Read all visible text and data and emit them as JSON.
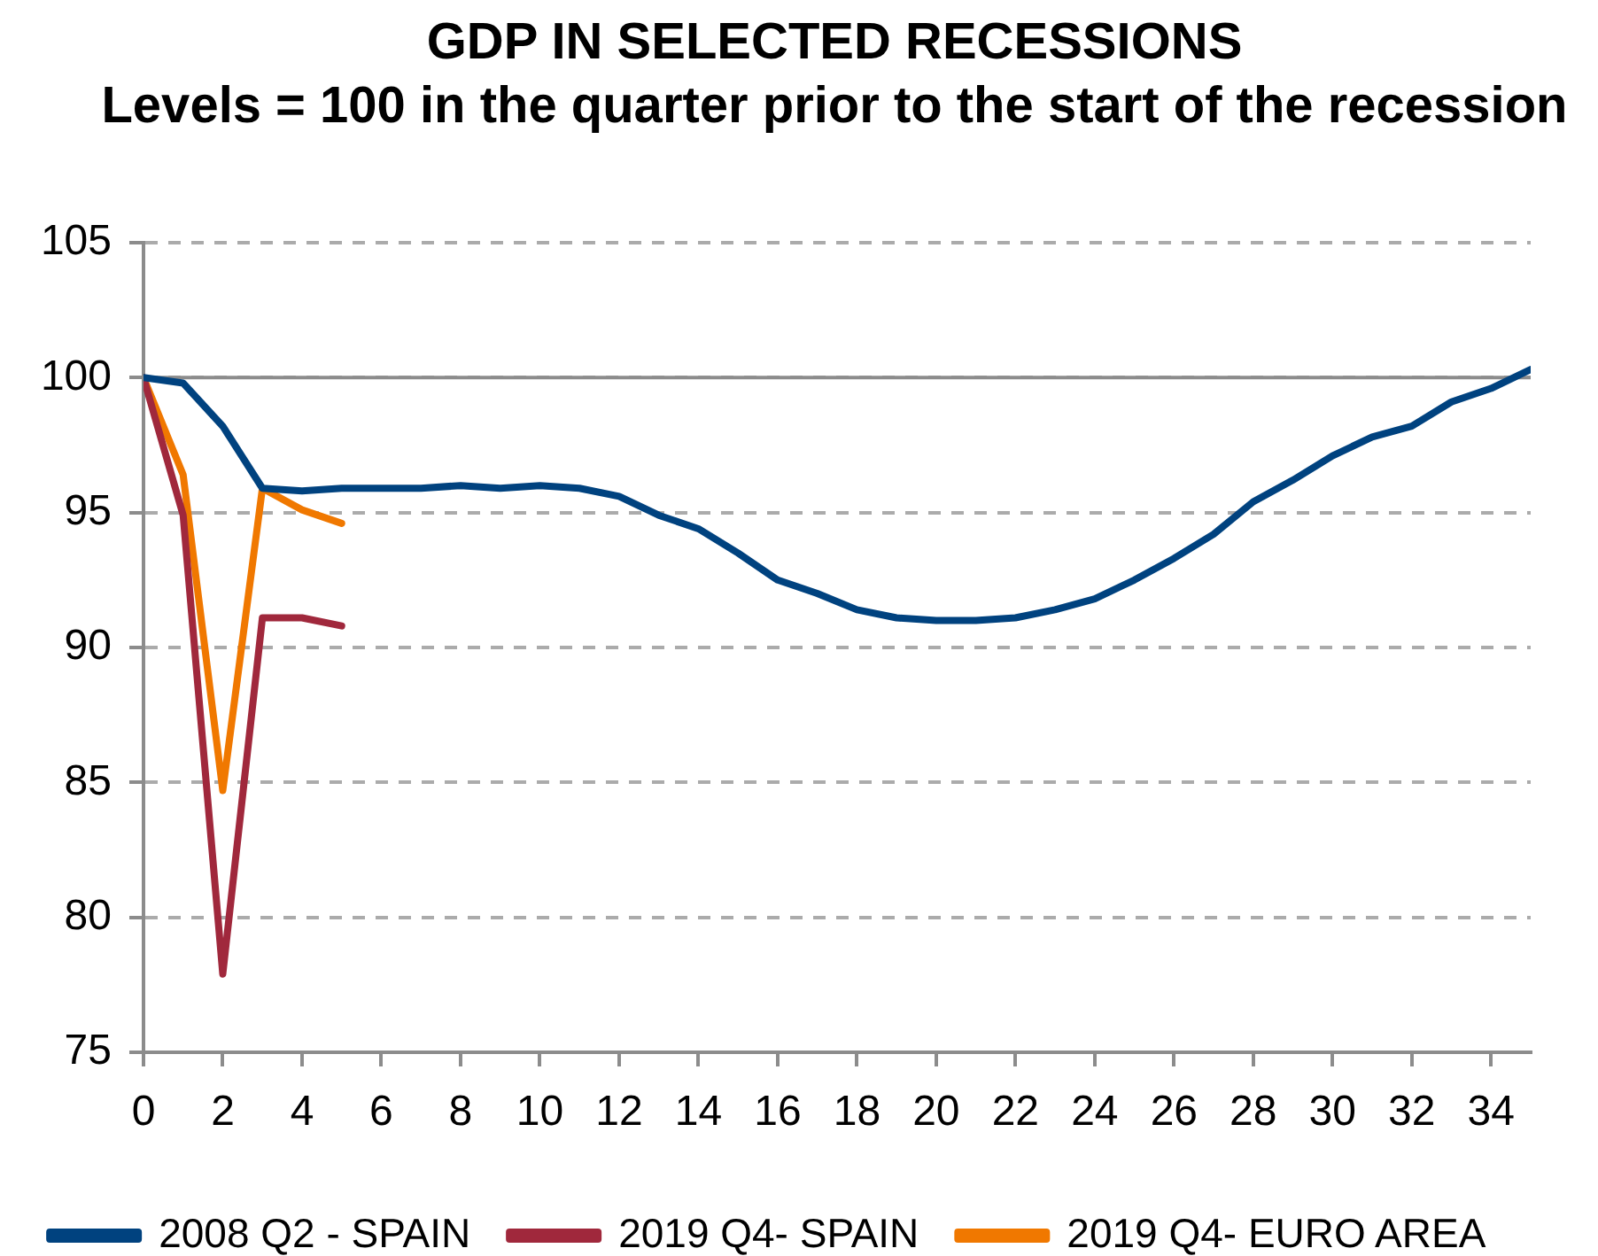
{
  "chart_data": {
    "type": "line",
    "title": "GDP IN SELECTED RECESSIONS",
    "subtitle": "Levels = 100 in the quarter prior to the start of the recession",
    "x": [
      0,
      1,
      2,
      3,
      4,
      5,
      6,
      7,
      8,
      9,
      10,
      11,
      12,
      13,
      14,
      15,
      16,
      17,
      18,
      19,
      20,
      21,
      22,
      23,
      24,
      25,
      26,
      27,
      28,
      29,
      30,
      31,
      32,
      33,
      34,
      35
    ],
    "series": [
      {
        "name": "2008 Q2 - SPAIN",
        "color": "#00427f",
        "values": [
          100,
          99.8,
          98.2,
          95.9,
          95.8,
          95.9,
          95.9,
          95.9,
          96,
          95.9,
          96,
          95.9,
          95.6,
          94.9,
          94.4,
          93.5,
          92.5,
          92,
          91.4,
          91.1,
          91,
          91,
          91.1,
          91.4,
          91.8,
          92.5,
          93.3,
          94.2,
          95.4,
          96.2,
          97.1,
          97.8,
          98.2,
          99.1,
          99.6,
          100.3
        ]
      },
      {
        "name": "2019 Q4- SPAIN",
        "color": "#a0283c",
        "x": [
          0,
          1,
          2,
          3,
          4,
          5
        ],
        "values": [
          100,
          94.9,
          77.9,
          91.1,
          91.1,
          90.8
        ]
      },
      {
        "name": "2019 Q4- EURO AREA",
        "color": "#f07800",
        "x": [
          0,
          1,
          2,
          3,
          4,
          5
        ],
        "values": [
          100,
          96.4,
          84.7,
          95.9,
          95.1,
          94.6
        ]
      }
    ],
    "xlim": [
      0,
      35
    ],
    "xticks": [
      0,
      2,
      4,
      6,
      8,
      10,
      12,
      14,
      16,
      18,
      20,
      22,
      24,
      26,
      28,
      30,
      32,
      34
    ],
    "ylim": [
      75,
      105
    ],
    "yticks": [
      75,
      80,
      85,
      90,
      95,
      100,
      105
    ],
    "grid": "y",
    "legend": "bottom",
    "marker": "none",
    "line_style": "solid",
    "ref_lines": [
      {
        "axis": "y",
        "value": 100,
        "color": "#8c8c8c"
      }
    ]
  }
}
